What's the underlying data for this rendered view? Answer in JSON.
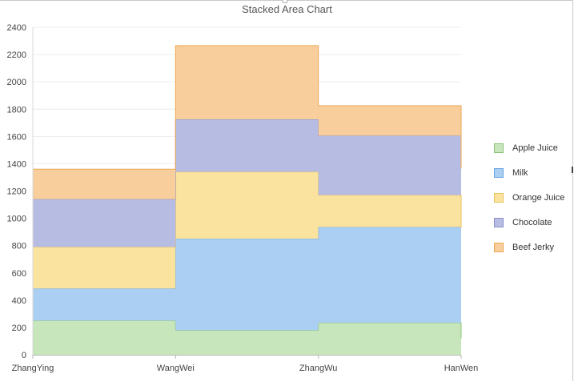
{
  "chart_data": {
    "type": "area",
    "step": true,
    "stacked": true,
    "title": "Stacked Area Chart",
    "categories": [
      "ZhangYing",
      "WangWei",
      "ZhangWu",
      "HanWen"
    ],
    "ylim": [
      0,
      2400
    ],
    "yticks": [
      0,
      200,
      400,
      600,
      800,
      1000,
      1200,
      1400,
      1600,
      1800,
      2000,
      2200,
      2400
    ],
    "grid": true,
    "legend_position": "right",
    "series": [
      {
        "name": "Apple Juice",
        "values": [
          250,
          180,
          235,
          120
        ],
        "fill": "#c8e6bc",
        "stroke": "#8cc47a"
      },
      {
        "name": "Milk",
        "values": [
          235,
          670,
          700,
          810
        ],
        "fill": "#aacff3",
        "stroke": "#6aa8e2"
      },
      {
        "name": "Orange Juice",
        "values": [
          305,
          490,
          235,
          0
        ],
        "fill": "#fae29f",
        "stroke": "#e8c45c"
      },
      {
        "name": "Chocolate",
        "values": [
          350,
          385,
          435,
          435
        ],
        "fill": "#b7bde2",
        "stroke": "#8c8fcb"
      },
      {
        "name": "Beef Jerky",
        "values": [
          220,
          540,
          220,
          0
        ],
        "fill": "#f8cf9c",
        "stroke": "#eea652"
      }
    ]
  }
}
